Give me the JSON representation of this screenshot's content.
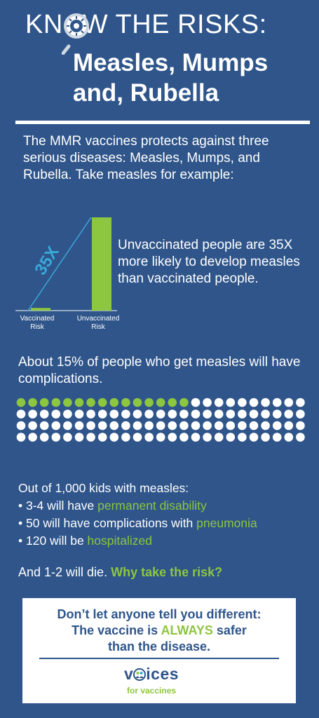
{
  "header": {
    "title_prefix": "KN",
    "title_suffix": "W THE RISKS:",
    "subtitle_line1": "Measles, Mumps",
    "subtitle_line2": "and, Rubella"
  },
  "intro": {
    "text": "The MMR vaccines protects against three serious diseases:  Measles, Mumps, and Rubella.  Take measles for example:"
  },
  "chart_data": {
    "type": "bar",
    "categories": [
      "Vaccinated Risk",
      "Unvaccinated Risk"
    ],
    "values": [
      1,
      35
    ],
    "annotation": "35X",
    "ylim": [
      0,
      36
    ]
  },
  "chart_labels": {
    "vaccinated_line1": "Vaccinated",
    "vaccinated_line2": "Risk",
    "unvaccinated_line1": "Unvaccinated",
    "unvaccinated_line2": "Risk"
  },
  "stat35": {
    "text": "Unvaccinated people are 35X more likely to develop measles than vaccinated people."
  },
  "complications": {
    "text": "About 15% of people who get measles will have complications.",
    "percent": 15,
    "dots_total": 100,
    "dots_highlighted": 15
  },
  "outof": {
    "heading": "Out of 1,000 kids with measles:",
    "items": [
      {
        "prefix": "• 3-4 will have ",
        "highlight": "permanent disability"
      },
      {
        "prefix": "• 50 will have complications with ",
        "highlight": "pneumonia"
      },
      {
        "prefix": "• 120 will be ",
        "highlight": "hospitalized"
      }
    ]
  },
  "closing": {
    "text": "And 1-2 will die. ",
    "highlight": "Why take the risk?"
  },
  "message_box": {
    "line1": "Don’t let anyone tell you different:",
    "line2_prefix": "The vaccine is ",
    "line2_highlight": "ALWAYS",
    "line2_suffix": " safer",
    "line3": "than the disease."
  },
  "logo": {
    "word_prefix": "v",
    "word_suffix": "ices",
    "tagline": "for vaccines"
  },
  "colors": {
    "background": "#2f558a",
    "accent_green": "#8dc63f",
    "line_teal": "#3aa7d8",
    "white": "#ffffff"
  }
}
